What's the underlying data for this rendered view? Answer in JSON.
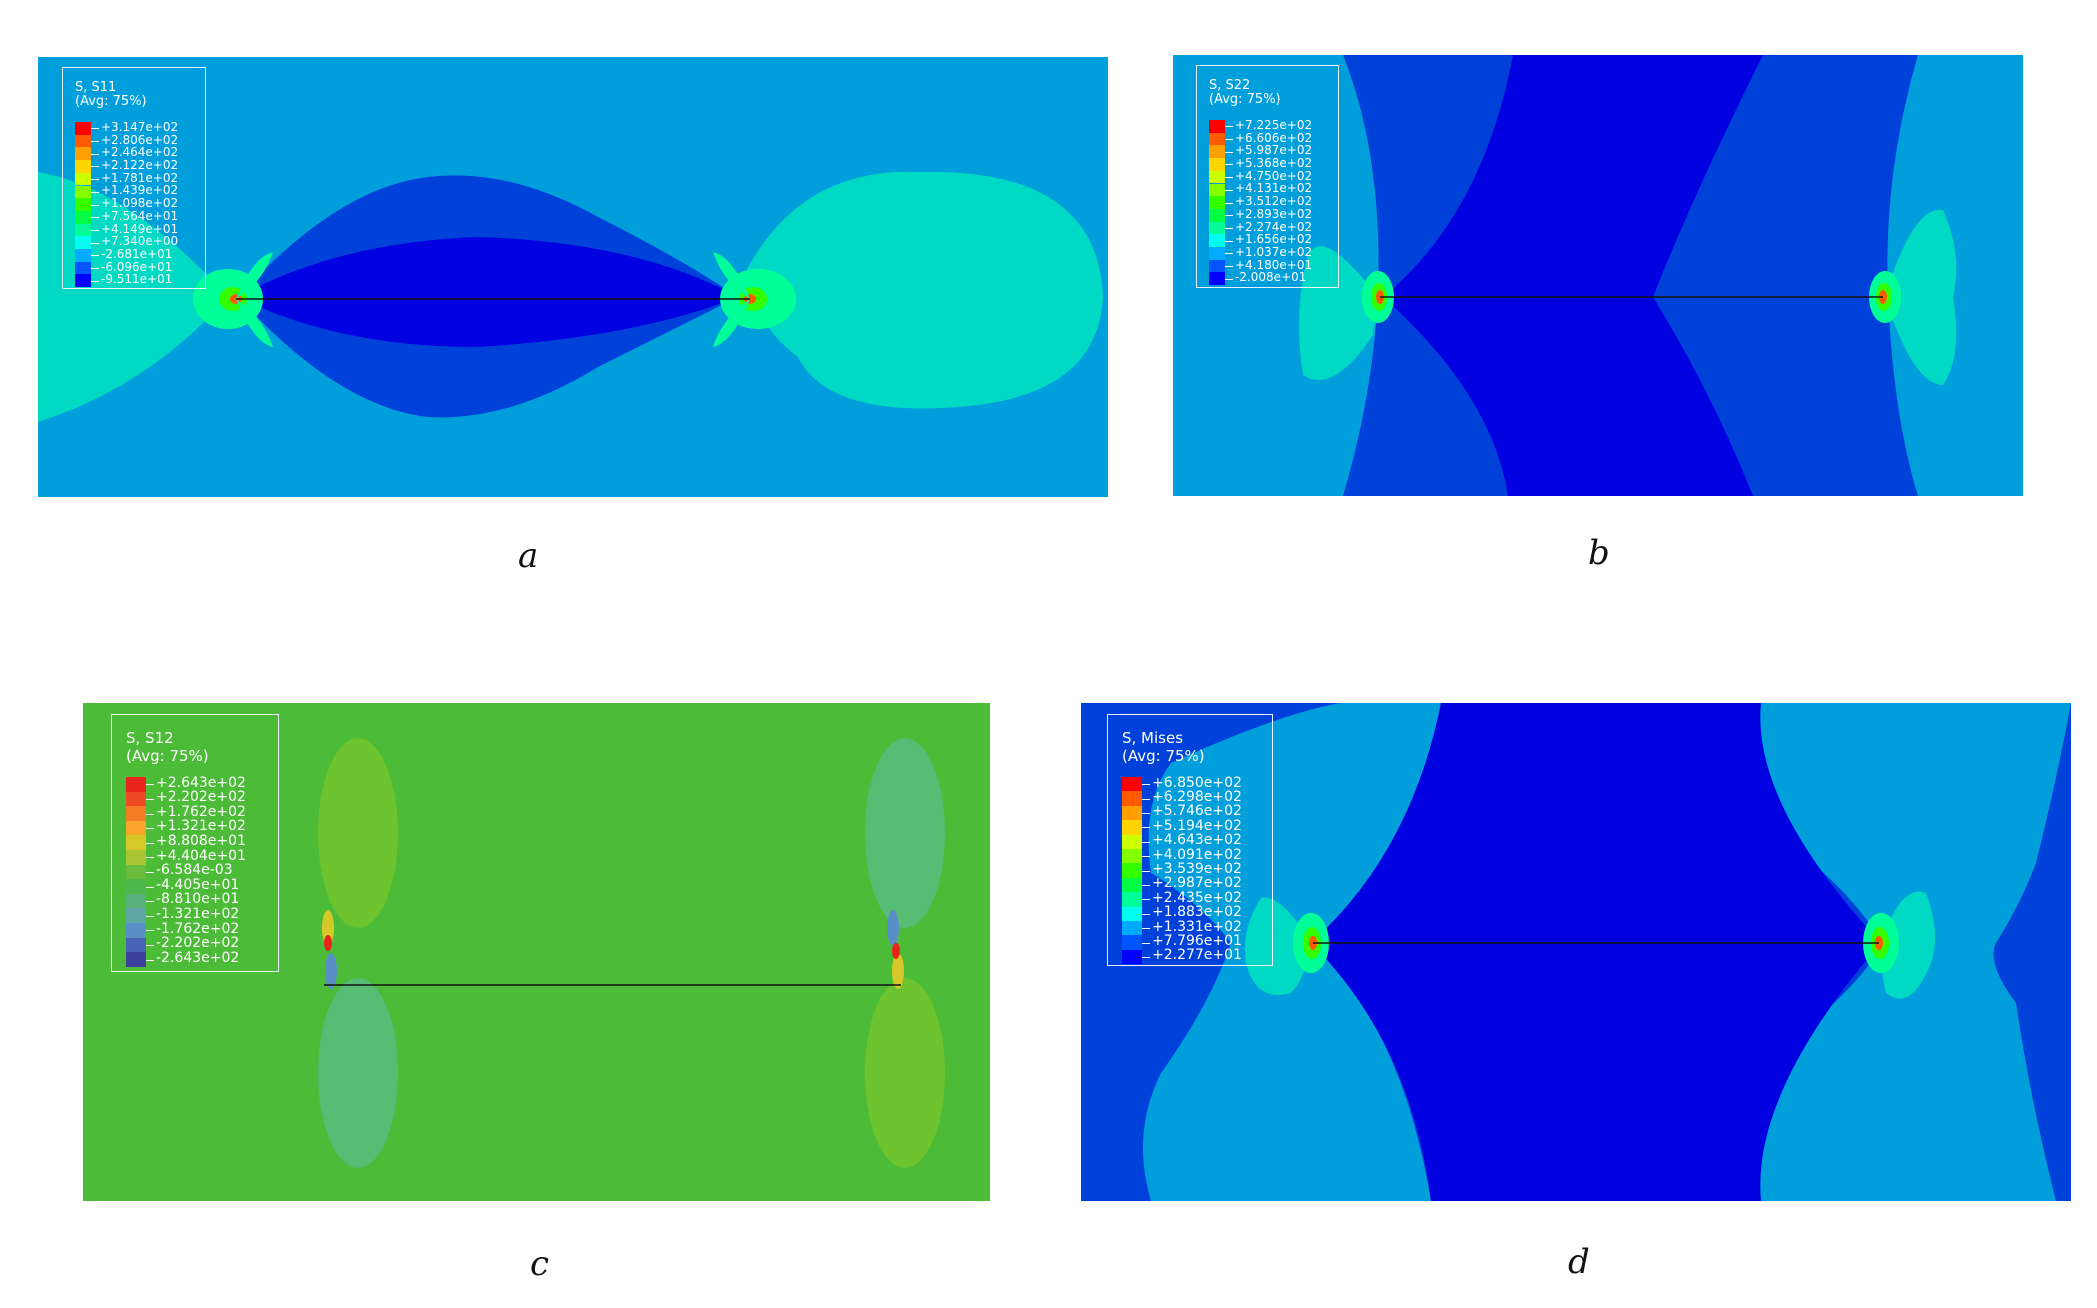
{
  "panels": {
    "a": {
      "caption": "a",
      "legend": {
        "title": "S, S11",
        "subtitle": "(Avg: 75%)",
        "values": [
          "+3.147e+02",
          "+2.806e+02",
          "+2.464e+02",
          "+2.122e+02",
          "+1.781e+02",
          "+1.439e+02",
          "+1.098e+02",
          "+7.564e+01",
          "+4.149e+01",
          "+7.340e+00",
          "-2.681e+01",
          "-6.096e+01",
          "-9.511e+01"
        ],
        "colors": [
          "#ff0000",
          "#ff5a00",
          "#ffa000",
          "#ffd400",
          "#ccff00",
          "#84ff00",
          "#33ff00",
          "#00ff44",
          "#00ff99",
          "#00ffee",
          "#00aaff",
          "#0055ff",
          "#0000ff"
        ]
      }
    },
    "b": {
      "caption": "b",
      "legend": {
        "title": "S, S22",
        "subtitle": "(Avg: 75%)",
        "values": [
          "+7.225e+02",
          "+6.606e+02",
          "+5.987e+02",
          "+5.368e+02",
          "+4.750e+02",
          "+4.131e+02",
          "+3.512e+02",
          "+2.893e+02",
          "+2.274e+02",
          "+1.656e+02",
          "+1.037e+02",
          "+4.180e+01",
          "-2.008e+01"
        ],
        "colors": [
          "#ff0000",
          "#ff5a00",
          "#ffa000",
          "#ffd400",
          "#ccff00",
          "#84ff00",
          "#33ff00",
          "#00ff44",
          "#00ff99",
          "#00ffee",
          "#00aaff",
          "#0055ff",
          "#0000ff"
        ]
      }
    },
    "c": {
      "caption": "c",
      "legend": {
        "title": "S, S12",
        "subtitle": "(Avg: 75%)",
        "values": [
          "+2.643e+02",
          "+2.202e+02",
          "+1.762e+02",
          "+1.321e+02",
          "+8.808e+01",
          "+4.404e+01",
          "-6.584e-03",
          "-4.405e+01",
          "-8.810e+01",
          "-1.321e+02",
          "-1.762e+02",
          "-2.202e+02",
          "-2.643e+02"
        ],
        "colors": [
          "#e8241b",
          "#ee4a25",
          "#f57c24",
          "#f8a52a",
          "#d6c829",
          "#a8c632",
          "#6cbb3a",
          "#4cb84d",
          "#58b07a",
          "#5fa6a5",
          "#5a8fc6",
          "#4865b5",
          "#3c3f9c"
        ]
      }
    },
    "d": {
      "caption": "d",
      "legend": {
        "title": "S, Mises",
        "subtitle": "(Avg: 75%)",
        "values": [
          "+6.850e+02",
          "+6.298e+02",
          "+5.746e+02",
          "+5.194e+02",
          "+4.643e+02",
          "+4.091e+02",
          "+3.539e+02",
          "+2.987e+02",
          "+2.435e+02",
          "+1.883e+02",
          "+1.331e+02",
          "+7.796e+01",
          "+2.277e+01"
        ],
        "colors": [
          "#ff0000",
          "#ff5a00",
          "#ffa000",
          "#ffd400",
          "#ccff00",
          "#84ff00",
          "#33ff00",
          "#00ff44",
          "#00ff99",
          "#00ffee",
          "#00aaff",
          "#0055ff",
          "#0000ff"
        ]
      }
    }
  },
  "contour_colors": {
    "a_background": "#009fdb",
    "a_lobes": "#00d9c4",
    "a_band_outer": "#0041d9",
    "a_band_inner": "#0000e0",
    "b_background": "#009fdb",
    "b_band": "#0041d9",
    "b_core": "#0000e0",
    "b_lobes": "#00d9c4",
    "c_background": "#4cbb38",
    "c_lobe_pos": "#6ec42e",
    "c_lobe_neg": "#55bd74",
    "d_background": "#0041d9",
    "d_band": "#009fdb",
    "d_core": "#0000e0",
    "d_lobes": "#00d9c4",
    "crack_line": "#111111"
  }
}
